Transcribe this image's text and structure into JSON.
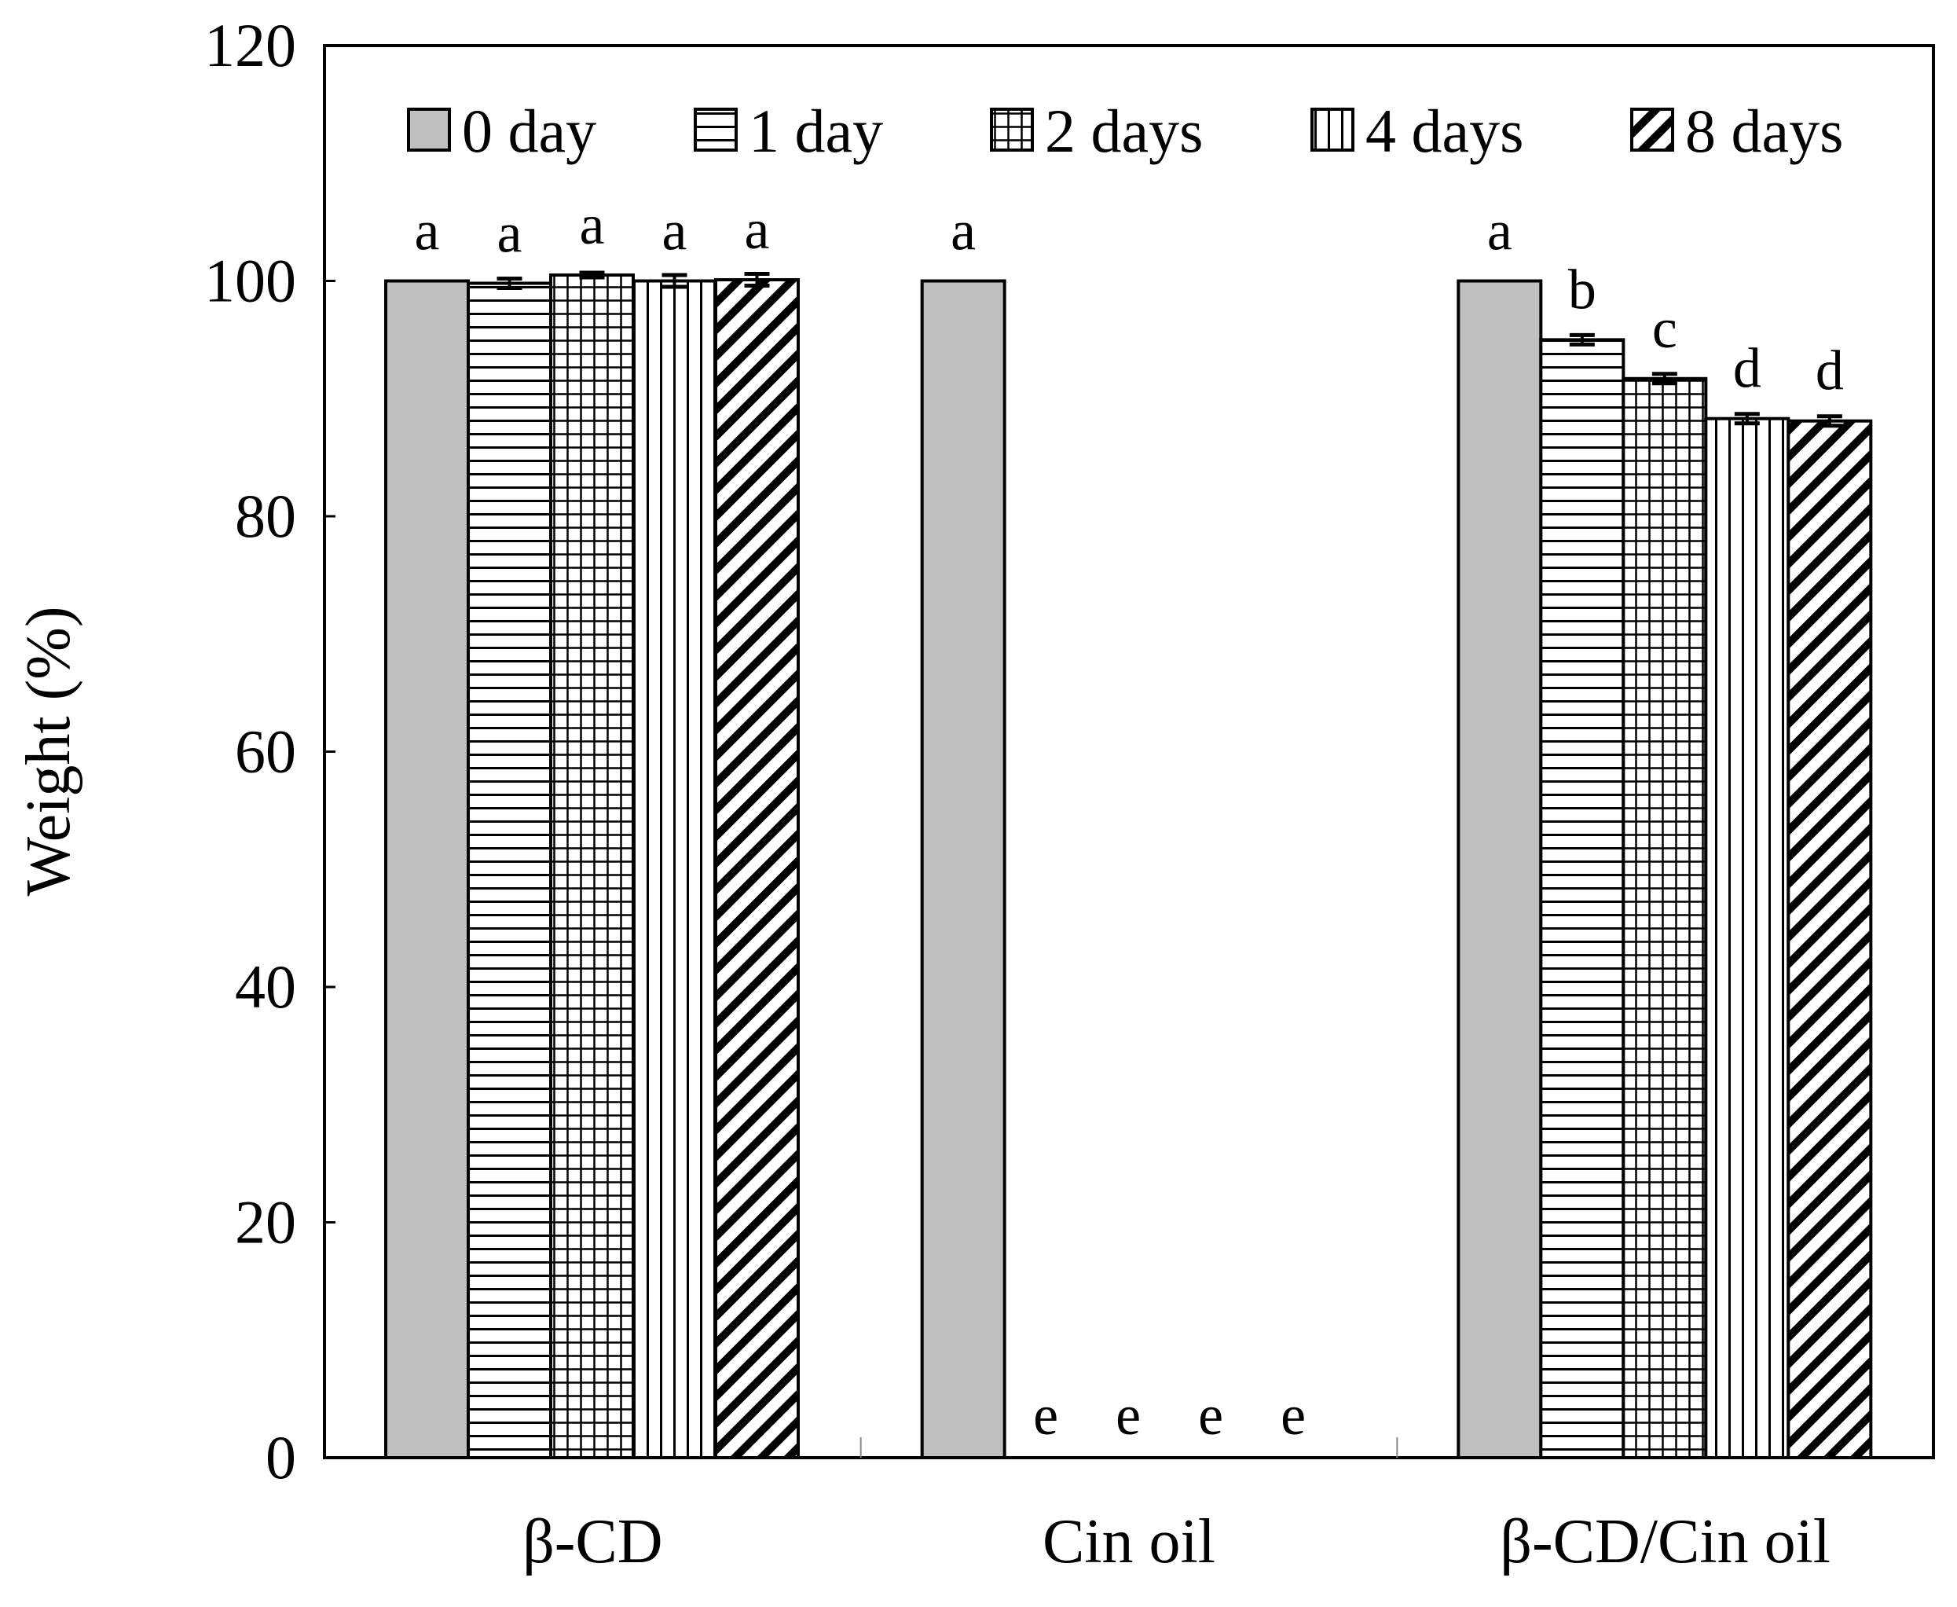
{
  "chart_data": {
    "type": "bar",
    "title": "",
    "xlabel": "",
    "ylabel": "Weight (%)",
    "ylim": [
      0,
      120
    ],
    "yticks": [
      "0",
      "20",
      "40",
      "60",
      "80",
      "100",
      "120"
    ],
    "categories": [
      "β-CD",
      "Cin oil",
      "β-CD/Cin oil"
    ],
    "legend_position": "top",
    "series": [
      {
        "name": "0 day",
        "pattern": "solid-gray",
        "values": [
          100,
          100,
          100
        ],
        "errors": [
          0,
          0,
          0
        ],
        "labels": [
          "a",
          "a",
          "a"
        ]
      },
      {
        "name": "1 day",
        "pattern": "horizontal",
        "values": [
          99.8,
          0,
          95.0
        ],
        "errors": [
          0.4,
          0,
          0.4
        ],
        "labels": [
          "a",
          "e",
          "b"
        ]
      },
      {
        "name": "2 days",
        "pattern": "grid",
        "values": [
          100.5,
          0,
          91.7
        ],
        "errors": [
          0.2,
          0,
          0.4
        ],
        "labels": [
          "a",
          "e",
          "c"
        ]
      },
      {
        "name": "4 days",
        "pattern": "vertical",
        "values": [
          100.0,
          0,
          88.3
        ],
        "errors": [
          0.5,
          0,
          0.4
        ],
        "labels": [
          "a",
          "e",
          "d"
        ]
      },
      {
        "name": "8 days",
        "pattern": "diagonal",
        "values": [
          100.1,
          0,
          88.1
        ],
        "errors": [
          0.5,
          0,
          0.4
        ],
        "labels": [
          "a",
          "e",
          "d"
        ]
      }
    ],
    "colors": {
      "gray_fill": "#c0c0c0",
      "ink": "#000000",
      "background": "#ffffff"
    }
  }
}
